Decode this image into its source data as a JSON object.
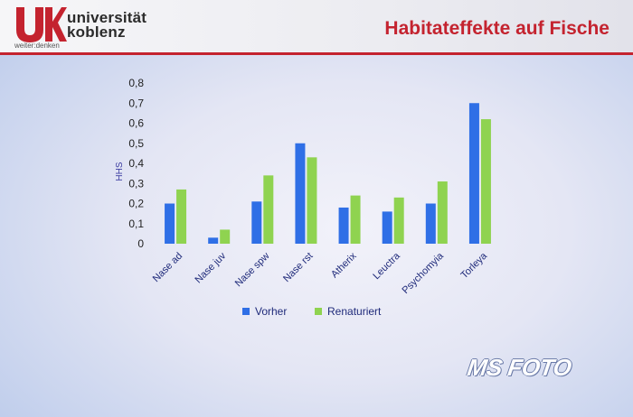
{
  "header": {
    "logo_name_line1": "universität",
    "logo_name_line2": "koblenz",
    "logo_tagline": "weiter:denken",
    "slide_title": "Habitateffekte auf Fische",
    "accent_color": "#c4232f"
  },
  "chart_data": {
    "type": "bar",
    "title": "",
    "xlabel": "",
    "ylabel": "HHS",
    "ylim": [
      0,
      0.8
    ],
    "yticks": [
      "0",
      "0,1",
      "0,2",
      "0,3",
      "0,4",
      "0,5",
      "0,6",
      "0,7",
      "0,8"
    ],
    "grid": false,
    "legend_position": "bottom",
    "categories": [
      "Nase ad",
      "Nase juv",
      "Nase spw",
      "Nase rst",
      "Atherix",
      "Leuctra",
      "Psychomyia",
      "Torleya"
    ],
    "series": [
      {
        "name": "Vorher",
        "color": "#2f6fe6",
        "values": [
          0.2,
          0.03,
          0.21,
          0.5,
          0.18,
          0.16,
          0.2,
          0.7
        ]
      },
      {
        "name": "Renaturiert",
        "color": "#8fd350",
        "values": [
          0.27,
          0.07,
          0.34,
          0.43,
          0.24,
          0.23,
          0.31,
          0.62
        ]
      }
    ]
  },
  "watermark": "MS FOTO"
}
